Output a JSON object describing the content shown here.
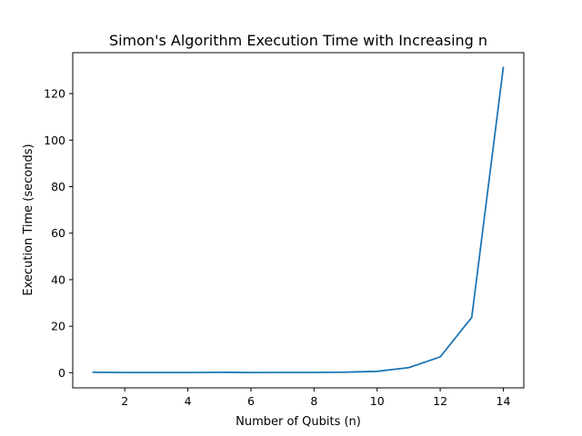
{
  "chart_data": {
    "type": "line",
    "title": "Simon's Algorithm Execution Time with Increasing n",
    "xlabel": "Number of Qubits (n)",
    "ylabel": "Execution Time (seconds)",
    "xlim": [
      0.35,
      14.65
    ],
    "ylim": [
      -6.5,
      137.6
    ],
    "xticks": [
      2,
      4,
      6,
      8,
      10,
      12,
      14
    ],
    "yticks": [
      0,
      20,
      40,
      60,
      80,
      100,
      120
    ],
    "grid": false,
    "series": [
      {
        "color": "#1f77b4",
        "x": [
          1,
          2,
          3,
          4,
          5,
          6,
          7,
          8,
          9,
          10,
          11,
          12,
          13,
          14
        ],
        "y": [
          0.2,
          0.1,
          0.1,
          0.1,
          0.2,
          0.1,
          0.15,
          0.15,
          0.25,
          0.6,
          2.2,
          6.8,
          23.8,
          131.2
        ]
      }
    ]
  }
}
